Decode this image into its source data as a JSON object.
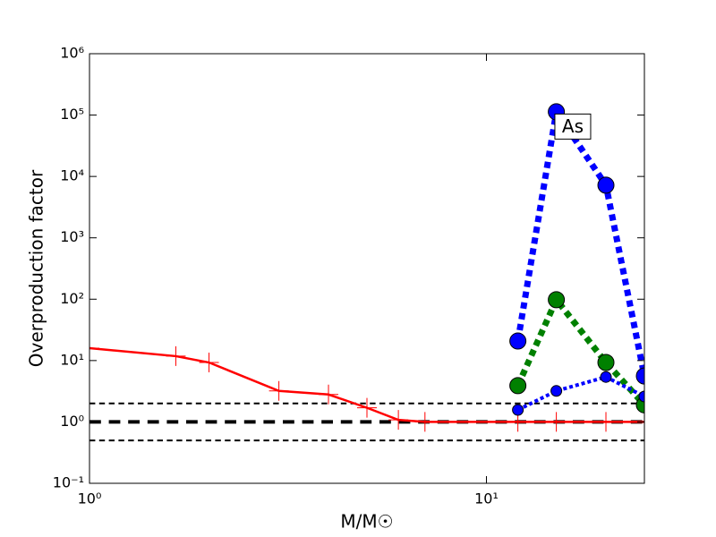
{
  "chart_data": {
    "type": "line",
    "xlabel": "M/M☉",
    "ylabel": "Overproduction factor",
    "xscale": "log",
    "yscale": "log",
    "xlim": [
      1,
      25
    ],
    "ylim": [
      0.1,
      1000000
    ],
    "xticks": [
      {
        "value": 1,
        "label": "10⁰"
      },
      {
        "value": 10,
        "label": "10¹"
      }
    ],
    "yticks": [
      {
        "value": 0.1,
        "label": "10⁻¹"
      },
      {
        "value": 1,
        "label": "10⁰"
      },
      {
        "value": 10,
        "label": "10¹"
      },
      {
        "value": 100,
        "label": "10²"
      },
      {
        "value": 1000,
        "label": "10³"
      },
      {
        "value": 10000,
        "label": "10⁴"
      },
      {
        "value": 100000,
        "label": "10⁵"
      },
      {
        "value": 1000000,
        "label": "10⁶"
      }
    ],
    "annotation": {
      "text": "As",
      "x": 16.5,
      "y": 65000
    },
    "hlines": [
      {
        "y": 2,
        "color": "#000000",
        "linestyle": "dashed",
        "linewidth": 2
      },
      {
        "y": 1,
        "color": "#000000",
        "linestyle": "dashed",
        "linewidth": 4
      },
      {
        "y": 0.5,
        "color": "#000000",
        "linestyle": "dashed",
        "linewidth": 2
      }
    ],
    "series": [
      {
        "color": "#ff0000",
        "linestyle": "solid",
        "linewidth": 2.5,
        "marker": "plus",
        "markersize": 11,
        "x": [
          1,
          1.65,
          2,
          3,
          4,
          5,
          6,
          7,
          12,
          15,
          20,
          25
        ],
        "values": [
          15.9,
          11.8,
          9.3,
          3.2,
          2.8,
          1.7,
          1.08,
          1.0,
          1.0,
          1.0,
          1.0,
          1.0
        ]
      },
      {
        "color": "#0000ff",
        "linestyle": "dotted",
        "linewidth": 7,
        "marker": "circle",
        "markersize": 9,
        "x": [
          12,
          15,
          20,
          25
        ],
        "values": [
          20.8,
          113000,
          7200,
          5.6
        ]
      },
      {
        "color": "#008000",
        "linestyle": "dotted",
        "linewidth": 7,
        "marker": "circle",
        "markersize": 9,
        "x": [
          12,
          15,
          20,
          25
        ],
        "values": [
          3.9,
          98,
          9.3,
          1.9
        ]
      },
      {
        "color": "#0000ff",
        "linestyle": "dotted",
        "linewidth": 4,
        "marker": "circle",
        "markersize": 6,
        "x": [
          12,
          15,
          20,
          25
        ],
        "values": [
          1.57,
          3.2,
          5.4,
          2.6
        ]
      }
    ]
  }
}
